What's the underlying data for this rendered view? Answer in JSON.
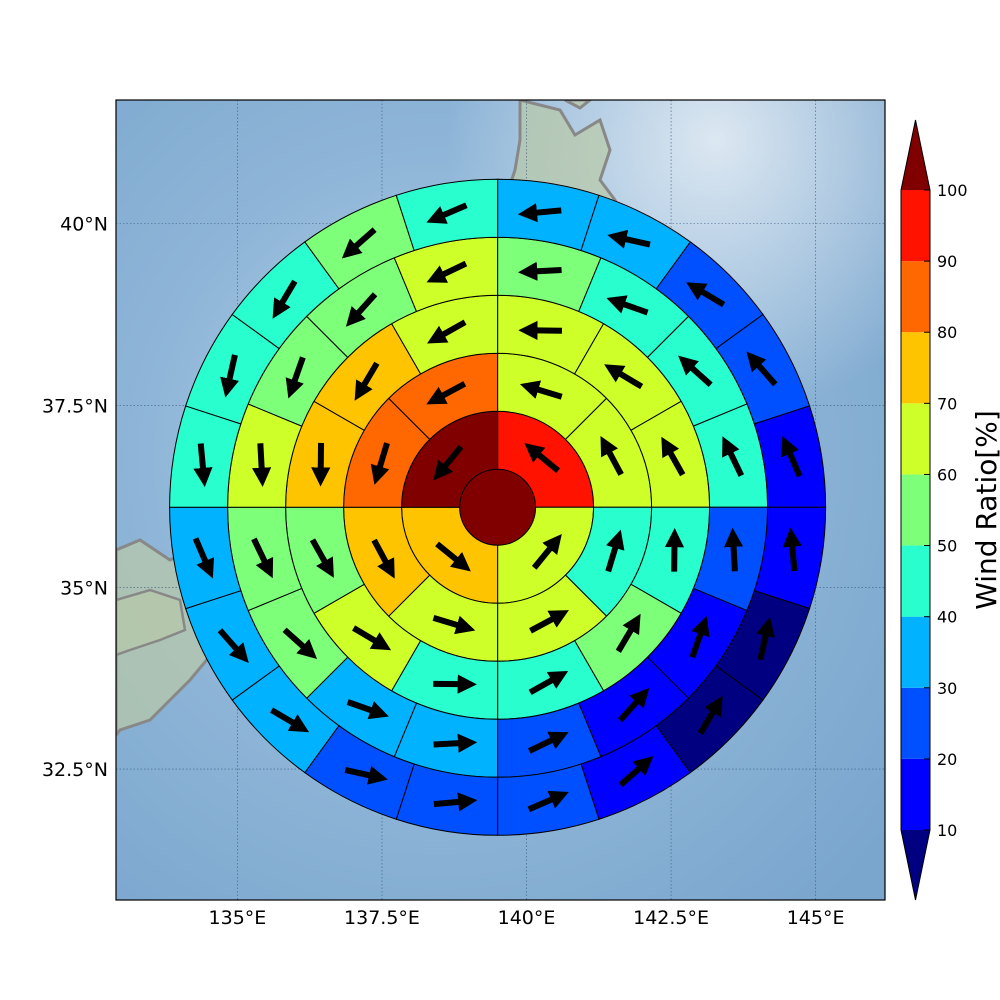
{
  "chart_data": {
    "type": "polar-sector-map",
    "map": {
      "lon_range": [
        132.9,
        146.2
      ],
      "lat_range": [
        30.7,
        41.7
      ],
      "xticks": [
        135,
        137.5,
        140,
        142.5,
        145
      ],
      "yticks": [
        32.5,
        35,
        37.5,
        40
      ],
      "xtick_labels": [
        "135°E",
        "137.5°E",
        "140°E",
        "142.5°E",
        "145°E"
      ],
      "ytick_labels": [
        "32.5°N",
        "35°N",
        "37.5°N",
        "40°N"
      ],
      "grid": true,
      "center_lon": 139.5,
      "center_lat": 36.1
    },
    "rings": [
      {
        "sectors": 1,
        "values": [
          100
        ]
      },
      {
        "sectors": 4,
        "values": [
          95,
          65,
          75,
          100
        ]
      },
      {
        "sectors": 8,
        "values": [
          65,
          65,
          45,
          65,
          65,
          75,
          85,
          85
        ]
      },
      {
        "sectors": 12,
        "values": [
          65,
          65,
          65,
          45,
          55,
          45,
          45,
          65,
          55,
          75,
          75,
          65
        ]
      },
      {
        "sectors": 16,
        "values": [
          55,
          45,
          45,
          45,
          25,
          15,
          15,
          25,
          35,
          35,
          55,
          55,
          65,
          55,
          55,
          65
        ]
      },
      {
        "sectors": 20,
        "values": [
          35,
          35,
          25,
          25,
          15,
          15,
          5,
          5,
          15,
          25,
          25,
          25,
          35,
          35,
          35,
          45,
          45,
          45,
          55,
          45
        ]
      }
    ],
    "colorbar": {
      "title": "Wind Ratio[%]",
      "ticks": [
        10,
        20,
        30,
        40,
        50,
        60,
        70,
        80,
        90,
        100
      ],
      "levels": [
        {
          "from": 10,
          "to": 20,
          "color": "#0000ff"
        },
        {
          "from": 20,
          "to": 30,
          "color": "#0050ff"
        },
        {
          "from": 30,
          "to": 40,
          "color": "#00b2ff"
        },
        {
          "from": 40,
          "to": 50,
          "color": "#29ffce"
        },
        {
          "from": 50,
          "to": 60,
          "color": "#7dff7a"
        },
        {
          "from": 60,
          "to": 70,
          "color": "#ceff29"
        },
        {
          "from": 70,
          "to": 80,
          "color": "#ffc400"
        },
        {
          "from": 80,
          "to": 90,
          "color": "#ff6800"
        },
        {
          "from": 90,
          "to": 100,
          "color": "#ff1300"
        }
      ],
      "under_color": "#000080",
      "over_color": "#800000",
      "extend": "both"
    }
  }
}
